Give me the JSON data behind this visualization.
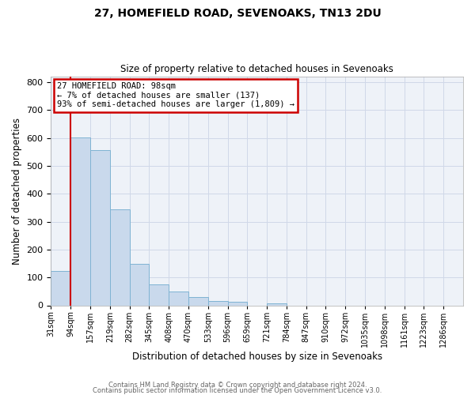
{
  "title1": "27, HOMEFIELD ROAD, SEVENOAKS, TN13 2DU",
  "title2": "Size of property relative to detached houses in Sevenoaks",
  "xlabel": "Distribution of detached houses by size in Sevenoaks",
  "ylabel": "Number of detached properties",
  "bar_labels": [
    "31sqm",
    "94sqm",
    "157sqm",
    "219sqm",
    "282sqm",
    "345sqm",
    "408sqm",
    "470sqm",
    "533sqm",
    "596sqm",
    "659sqm",
    "721sqm",
    "784sqm",
    "847sqm",
    "910sqm",
    "972sqm",
    "1035sqm",
    "1098sqm",
    "1161sqm",
    "1223sqm",
    "1286sqm"
  ],
  "bar_values": [
    122,
    601,
    556,
    345,
    148,
    75,
    50,
    30,
    15,
    13,
    0,
    8,
    0,
    0,
    0,
    0,
    0,
    0,
    0,
    0,
    0
  ],
  "bar_color": "#c9d9ec",
  "bar_edgecolor": "#7fb3d3",
  "vline_x": 1,
  "vline_color": "#cc0000",
  "annotation_text": "27 HOMEFIELD ROAD: 98sqm\n← 7% of detached houses are smaller (137)\n93% of semi-detached houses are larger (1,809) →",
  "annotation_box_color": "#cc0000",
  "ylim": [
    0,
    820
  ],
  "yticks": [
    0,
    100,
    200,
    300,
    400,
    500,
    600,
    700,
    800
  ],
  "grid_color": "#d0d8e8",
  "bg_color": "#eef2f8",
  "footer1": "Contains HM Land Registry data © Crown copyright and database right 2024.",
  "footer2": "Contains public sector information licensed under the Open Government Licence v3.0."
}
